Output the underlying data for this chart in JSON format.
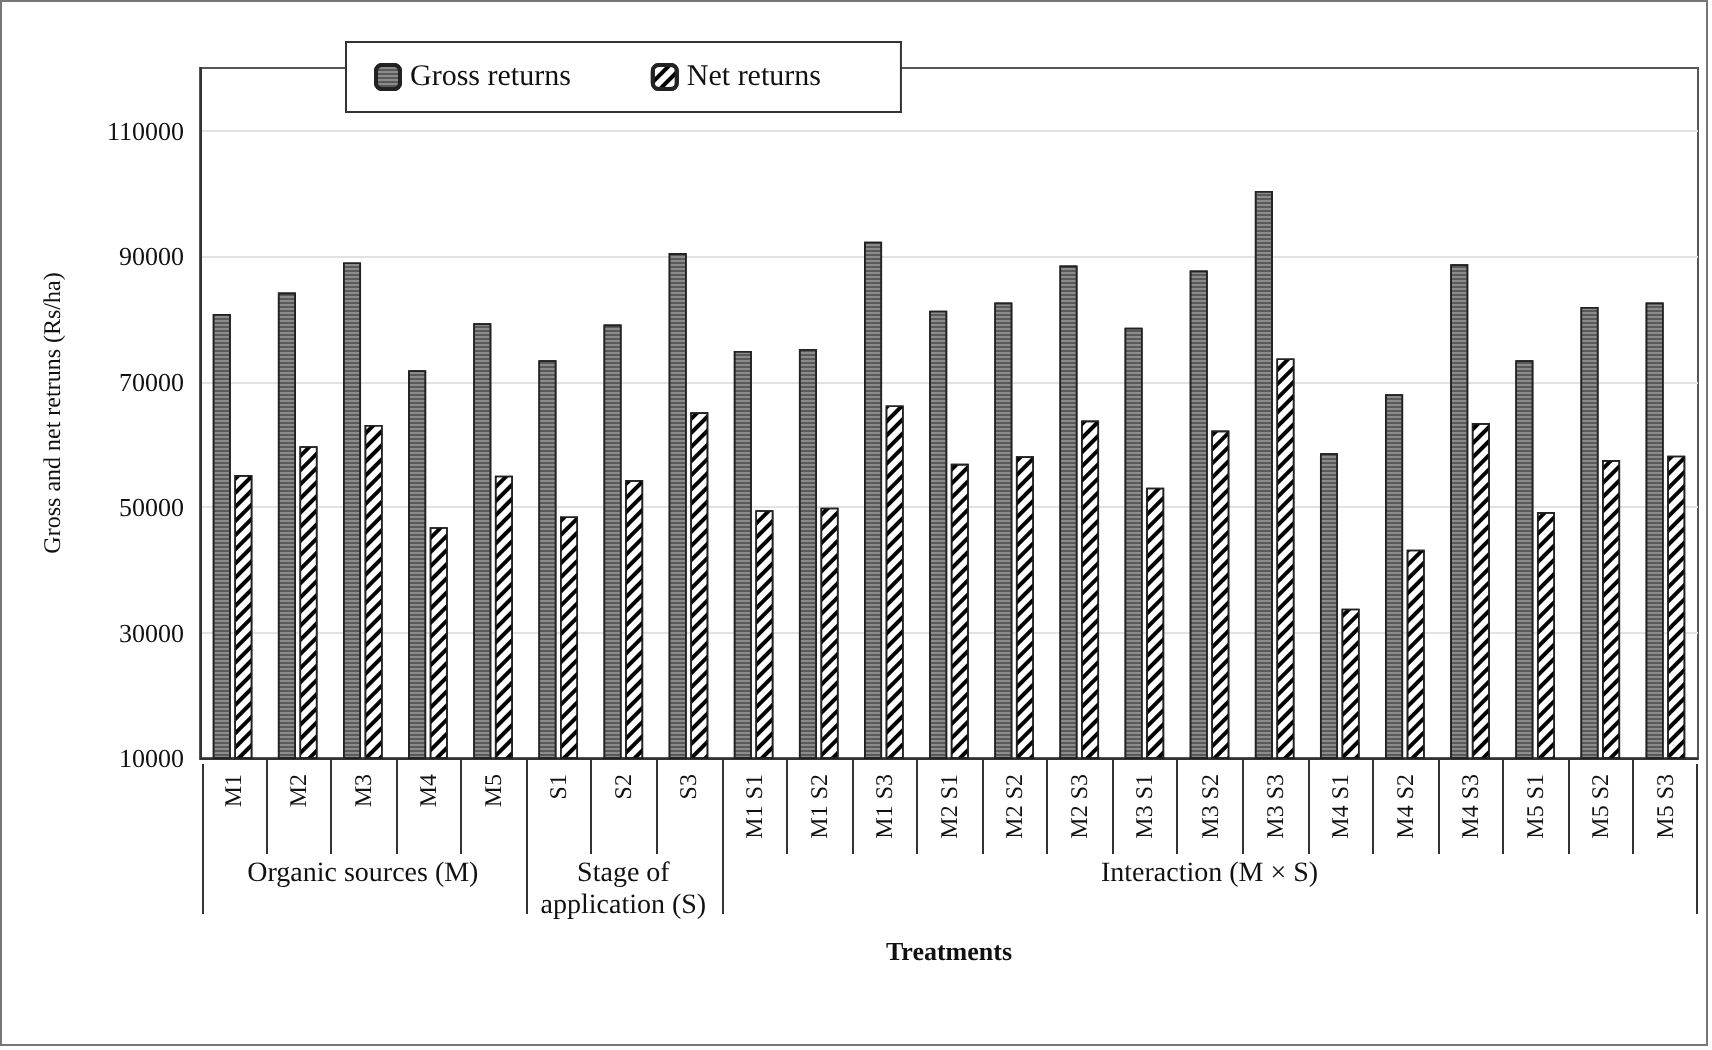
{
  "chart_data": {
    "type": "bar",
    "xlabel": "Treatments",
    "ylabel": "Gross and net retruns (Rs/ha)",
    "categories": [
      "M1",
      "M2",
      "M3",
      "M4",
      "M5",
      "S1",
      "S2",
      "S3",
      "M1 S1",
      "M1 S2",
      "M1 S3",
      "M2 S1",
      "M2 S2",
      "M2 S3",
      "M3 S1",
      "M3 S2",
      "M3 S3",
      "M4 S1",
      "M4 S2",
      "M4 S3",
      "M5 S1",
      "M5 S2",
      "M5 S3"
    ],
    "series": [
      {
        "name": "Gross returns",
        "color": "#8c8c8c",
        "values": [
          80800,
          84200,
          89000,
          71800,
          79300,
          73400,
          79100,
          90500,
          74900,
          75200,
          92300,
          81300,
          82600,
          88500,
          78600,
          87700,
          100400,
          58600,
          68000,
          88700,
          73400,
          81900,
          82600
        ]
      },
      {
        "name": "Net returns",
        "color": "#ffffff",
        "values": [
          55100,
          59700,
          63100,
          46800,
          55000,
          48500,
          54300,
          65100,
          49500,
          49900,
          66200,
          56900,
          58100,
          63800,
          53100,
          62200,
          73700,
          33800,
          43200,
          63400,
          49200,
          57500,
          58200
        ]
      }
    ],
    "annotations": [
      "Organic sources (M)",
      "Stage of\napplication (S)",
      "Interaction (M × S)"
    ],
    "ylim": [
      10000,
      120000
    ],
    "yticks": [
      10000,
      30000,
      50000,
      70000,
      90000,
      110000
    ],
    "grid": "y",
    "legend": "top"
  }
}
